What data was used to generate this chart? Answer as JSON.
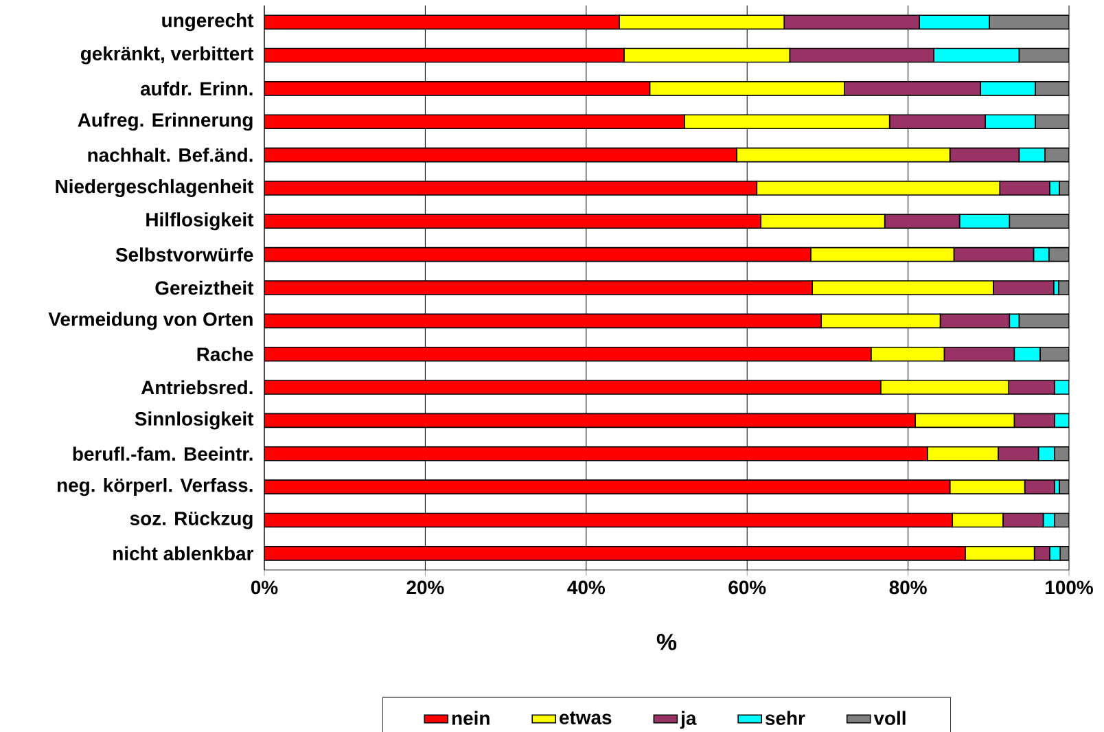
{
  "chart_data": {
    "type": "bar",
    "orientation": "horizontal",
    "stacked": true,
    "xlabel": "%",
    "categories": [
      "ungerecht",
      "gekränkt, verbittert",
      "aufdr. Erinn.",
      "Aufreg. Erinnerung",
      "nachhalt. Bef.änd.",
      "Niedergeschlagenheit",
      "Hilflosigkeit",
      "Selbstvorwürfe",
      "Gereiztheit",
      "Vermeidung von Orten",
      "Rache",
      "Antriebsred.",
      "Sinnlosigkeit",
      "berufl.-fam. Beeintr.",
      "neg. körperl. Verfass.",
      "soz. Rückzug",
      "nicht ablenkbar"
    ],
    "series": [
      {
        "name": "nein",
        "color": "#ff0000",
        "values": [
          44.1,
          44.7,
          47.9,
          52.2,
          58.7,
          61.2,
          61.7,
          67.9,
          68.1,
          69.2,
          75.4,
          76.6,
          80.9,
          82.4,
          85.2,
          85.5,
          87.1
        ]
      },
      {
        "name": "etwas",
        "color": "#ffff00",
        "values": [
          20.5,
          20.6,
          24.2,
          25.5,
          26.5,
          30.2,
          15.4,
          17.8,
          22.5,
          14.8,
          9.1,
          15.9,
          12.3,
          8.8,
          9.3,
          6.3,
          8.6
        ]
      },
      {
        "name": "ja",
        "color": "#993366",
        "values": [
          16.8,
          17.9,
          16.9,
          11.9,
          8.6,
          6.2,
          9.3,
          9.9,
          7.5,
          8.6,
          8.7,
          5.7,
          5.0,
          5.0,
          3.7,
          5.0,
          1.9
        ]
      },
      {
        "name": "sehr",
        "color": "#00ffff",
        "values": [
          8.7,
          10.6,
          6.8,
          6.2,
          3.2,
          1.2,
          6.2,
          1.9,
          0.6,
          1.2,
          3.2,
          1.8,
          1.8,
          2.0,
          0.6,
          1.4,
          1.3
        ]
      },
      {
        "name": "voll",
        "color": "#808080",
        "values": [
          9.9,
          6.2,
          4.2,
          4.2,
          3.0,
          1.2,
          7.4,
          2.5,
          1.3,
          6.2,
          3.6,
          0,
          0,
          1.8,
          1.2,
          1.8,
          1.1
        ]
      }
    ],
    "xlim": [
      0,
      100
    ],
    "xticks": [
      {
        "value": 0,
        "label": "0%"
      },
      {
        "value": 20,
        "label": "20%"
      },
      {
        "value": 40,
        "label": "40%"
      },
      {
        "value": 60,
        "label": "60%"
      },
      {
        "value": 80,
        "label": "80%"
      },
      {
        "value": 100,
        "label": "100%"
      }
    ],
    "grid": "x",
    "legend": "bottom"
  }
}
